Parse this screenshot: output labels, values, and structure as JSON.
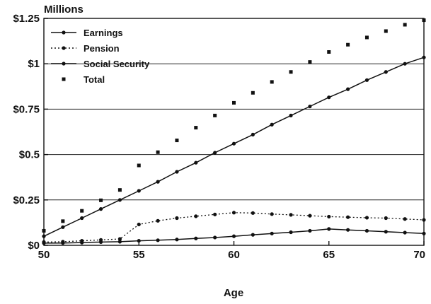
{
  "chart_data": {
    "type": "line",
    "unit_label": "Millions",
    "xlabel": "Age",
    "ylabel": "",
    "x": [
      50,
      51,
      52,
      53,
      54,
      55,
      56,
      57,
      58,
      59,
      60,
      61,
      62,
      63,
      64,
      65,
      66,
      67,
      68,
      69,
      70
    ],
    "xlim": [
      50,
      70
    ],
    "ylim": [
      0,
      1.25
    ],
    "x_ticks": [
      "50",
      "55",
      "60",
      "65",
      "70"
    ],
    "y_ticks": [
      "$0",
      "$0.25",
      "$0.5",
      "$0.75",
      "$1",
      "$1.25"
    ],
    "grid": "horizontal",
    "legend_position": "top-left",
    "series": [
      {
        "name": "Earnings",
        "style": "solid-line-dots",
        "values": [
          0.05,
          0.1,
          0.15,
          0.2,
          0.25,
          0.3,
          0.35,
          0.405,
          0.455,
          0.51,
          0.56,
          0.61,
          0.665,
          0.715,
          0.765,
          0.815,
          0.86,
          0.91,
          0.955,
          1.0,
          1.035
        ]
      },
      {
        "name": "Pension",
        "style": "dotted-line-dots",
        "values": [
          0.018,
          0.02,
          0.025,
          0.03,
          0.035,
          0.115,
          0.135,
          0.15,
          0.16,
          0.17,
          0.18,
          0.178,
          0.172,
          0.168,
          0.163,
          0.158,
          0.155,
          0.152,
          0.15,
          0.145,
          0.14
        ]
      },
      {
        "name": "Social Security",
        "style": "solid-line-dots",
        "values": [
          0.012,
          0.013,
          0.015,
          0.018,
          0.02,
          0.025,
          0.028,
          0.032,
          0.038,
          0.043,
          0.05,
          0.058,
          0.065,
          0.072,
          0.08,
          0.09,
          0.085,
          0.08,
          0.075,
          0.07,
          0.065
        ]
      },
      {
        "name": "Total",
        "style": "square-markers",
        "values": [
          0.08,
          0.133,
          0.19,
          0.248,
          0.305,
          0.44,
          0.513,
          0.578,
          0.648,
          0.715,
          0.785,
          0.84,
          0.9,
          0.955,
          1.01,
          1.065,
          1.105,
          1.145,
          1.18,
          1.215,
          1.24
        ]
      }
    ]
  }
}
